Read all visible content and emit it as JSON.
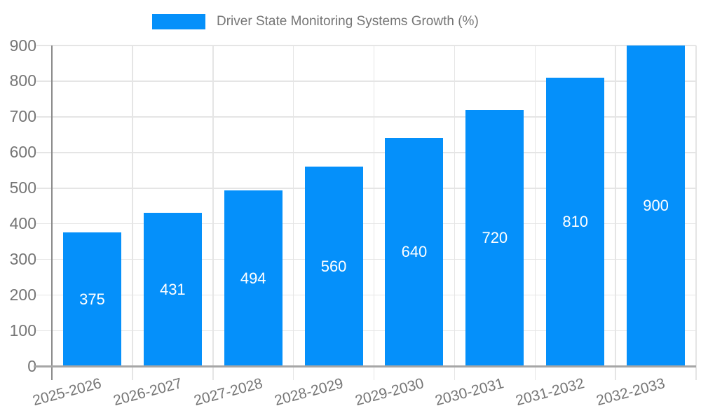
{
  "chart_data": {
    "type": "bar",
    "title": "Driver State Monitoring Systems Growth (%)",
    "categories": [
      "2025-2026",
      "2026-2027",
      "2027-2028",
      "2028-2029",
      "2029-2030",
      "2030-2031",
      "2031-2032",
      "2032-2033"
    ],
    "values": [
      375,
      431,
      494,
      560,
      640,
      720,
      810,
      900
    ],
    "xlabel": "",
    "ylabel": "",
    "ylim": [
      0,
      900
    ],
    "y_ticks": [
      0,
      100,
      200,
      300,
      400,
      500,
      600,
      700,
      800,
      900
    ],
    "grid": "horizontal-and-vertical",
    "legend_position": "top-center",
    "value_label_position": "inside-center",
    "x_label_rotation_deg": -15,
    "colors": {
      "bar": "#0590FA",
      "axis_text": "#757575",
      "grid": "#E5E5E5",
      "x_axis_line": "#A6A6A6",
      "y_axis_line": "#8A8A8A",
      "value_label": "#FFFFFF",
      "background": "#FFFFFF"
    }
  }
}
